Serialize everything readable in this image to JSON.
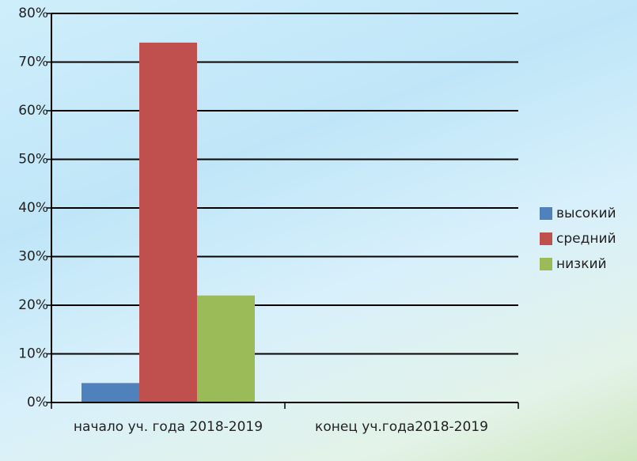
{
  "chart_data": {
    "type": "bar",
    "categories": [
      "начало уч. года 2018-2019",
      "конец уч.года2018-2019"
    ],
    "series": [
      {
        "name": "высокий",
        "color": "#4f81bd",
        "values": [
          4,
          null
        ]
      },
      {
        "name": "средний",
        "color": "#c0504d",
        "values": [
          74,
          null
        ]
      },
      {
        "name": "низкий",
        "color": "#9bbb59",
        "values": [
          22,
          null
        ]
      }
    ],
    "ylim": [
      0,
      80
    ],
    "yticks": [
      {
        "value": 0,
        "label": "0%"
      },
      {
        "value": 10,
        "label": "10%"
      },
      {
        "value": 20,
        "label": "20%"
      },
      {
        "value": 30,
        "label": "30%"
      },
      {
        "value": 40,
        "label": "40%"
      },
      {
        "value": 50,
        "label": "50%"
      },
      {
        "value": 60,
        "label": "60%"
      },
      {
        "value": 70,
        "label": "70%"
      },
      {
        "value": 80,
        "label": "80%"
      }
    ],
    "grid": true,
    "legend": "right"
  }
}
